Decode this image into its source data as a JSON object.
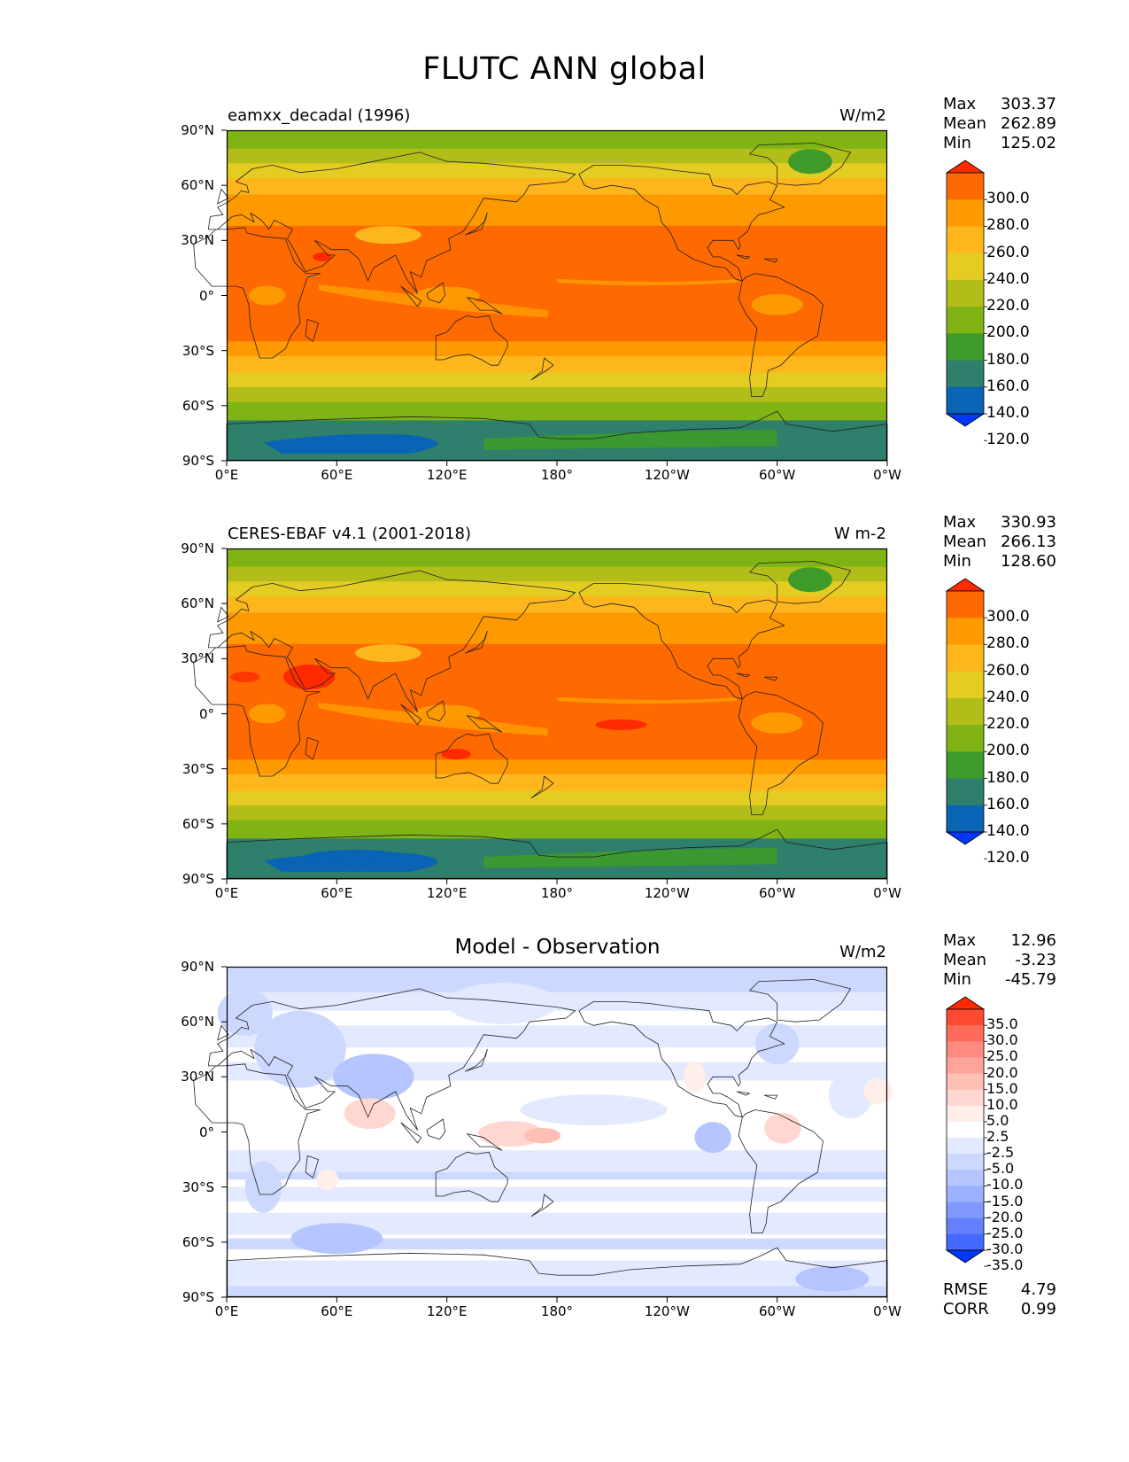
{
  "title": "FLUTC ANN global",
  "lat_labels": [
    "90°N",
    "60°N",
    "30°N",
    "0°",
    "30°S",
    "60°S",
    "90°S"
  ],
  "lon_labels": [
    "0°E",
    "60°E",
    "120°E",
    "180°",
    "120°W",
    "60°W",
    "0°W"
  ],
  "panels": {
    "model": {
      "title": "eamxx_decadal (1996)",
      "units": "W/m2",
      "stats": {
        "max_label": "Max",
        "max": "303.37",
        "mean_label": "Mean",
        "mean": "262.89",
        "min_label": "Min",
        "min": "125.02"
      },
      "colorbar": {
        "labels": [
          "300.0",
          "280.0",
          "260.0",
          "240.0",
          "220.0",
          "200.0",
          "180.0",
          "160.0",
          "140.0",
          "120.0"
        ],
        "colors": [
          "#ff2a00",
          "#fe6a00",
          "#ff9900",
          "#fdb61c",
          "#e5cc23",
          "#b2bd1a",
          "#7fb414",
          "#3e9b2a",
          "#2e7f6b",
          "#0a63b5",
          "#0038ff"
        ]
      }
    },
    "obs": {
      "title": "CERES-EBAF v4.1 (2001-2018)",
      "units": "W m-2",
      "stats": {
        "max_label": "Max",
        "max": "330.93",
        "mean_label": "Mean",
        "mean": "266.13",
        "min_label": "Min",
        "min": "128.60"
      },
      "colorbar": {
        "labels": [
          "300.0",
          "280.0",
          "260.0",
          "240.0",
          "220.0",
          "200.0",
          "180.0",
          "160.0",
          "140.0",
          "120.0"
        ],
        "colors": [
          "#ff2a00",
          "#fe6a00",
          "#ff9900",
          "#fdb61c",
          "#e5cc23",
          "#b2bd1a",
          "#7fb414",
          "#3e9b2a",
          "#2e7f6b",
          "#0a63b5",
          "#0038ff"
        ]
      }
    },
    "diff": {
      "title": "Model - Observation",
      "units": "W/m2",
      "stats": {
        "max_label": "Max",
        "max": "12.96",
        "mean_label": "Mean",
        "mean": "-3.23",
        "min_label": "Min",
        "min": "-45.79"
      },
      "colorbar": {
        "labels": [
          "35.0",
          "30.0",
          "25.0",
          "20.0",
          "15.0",
          "10.0",
          "5.0",
          "2.5",
          "-2.5",
          "-5.0",
          "-10.0",
          "-15.0",
          "-20.0",
          "-25.0",
          "-30.0",
          "-35.0"
        ],
        "colors": [
          "#ff2a00",
          "#ff4a33",
          "#ff6a5a",
          "#ff8a80",
          "#ffa499",
          "#ffbfb5",
          "#ffd7d0",
          "#ffeeea",
          "#ffffff",
          "#e3e9ff",
          "#cdd8ff",
          "#b5c5ff",
          "#9cb1ff",
          "#8098ff",
          "#6480ff",
          "#4469ff",
          "#0038ff"
        ]
      },
      "error_stats": {
        "rmse_label": "RMSE",
        "rmse": "4.79",
        "corr_label": "CORR",
        "corr": "0.99"
      }
    }
  }
}
